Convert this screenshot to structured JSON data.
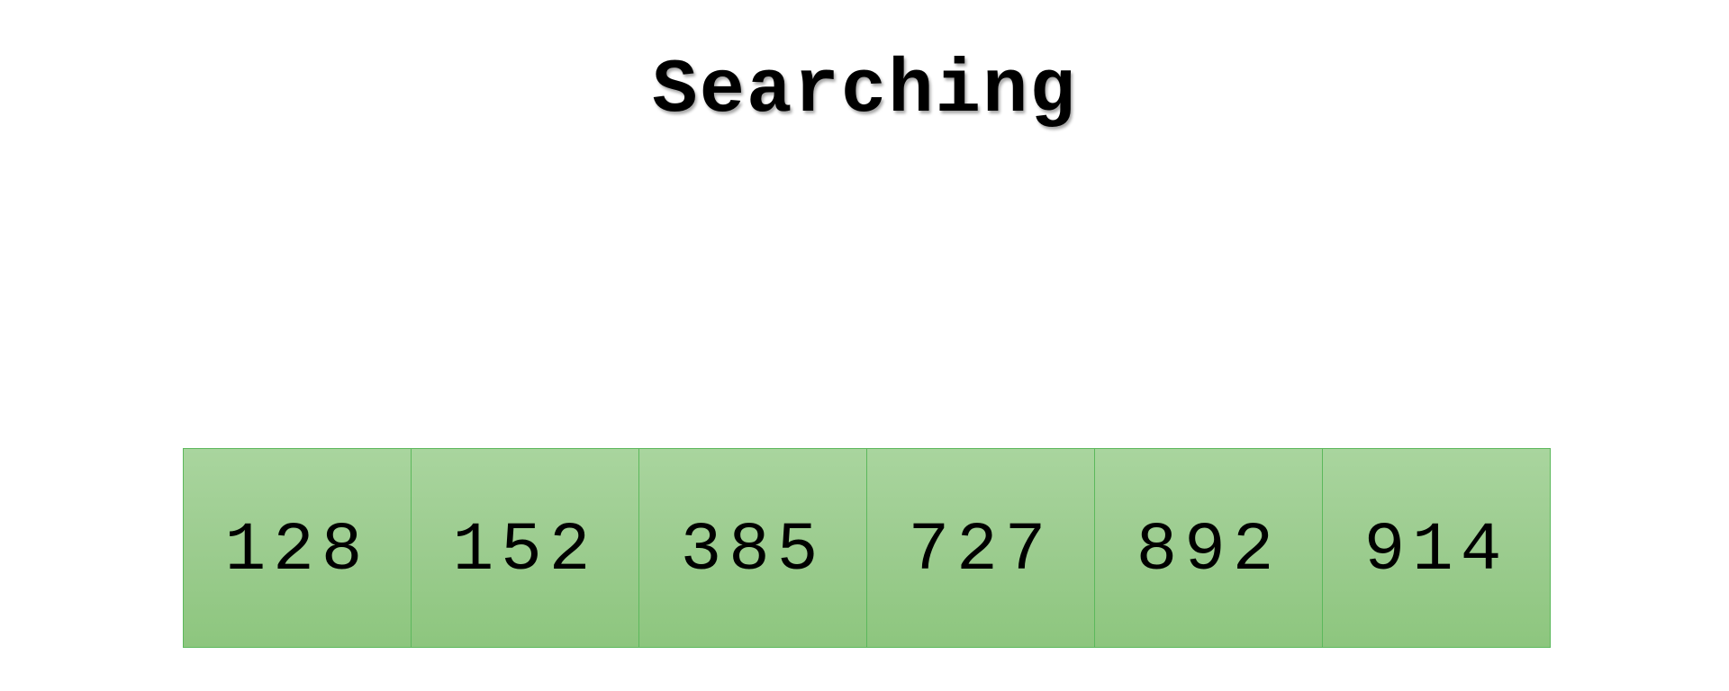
{
  "title": "Searching",
  "array": {
    "cells": [
      {
        "value": "128"
      },
      {
        "value": "152"
      },
      {
        "value": "385"
      },
      {
        "value": "727"
      },
      {
        "value": "892"
      },
      {
        "value": "914"
      }
    ]
  },
  "colors": {
    "cell_fill_top": "#a9d59e",
    "cell_fill_bottom": "#8dc67e",
    "cell_border": "#5cb85c",
    "text": "#000000",
    "background": "#ffffff"
  }
}
